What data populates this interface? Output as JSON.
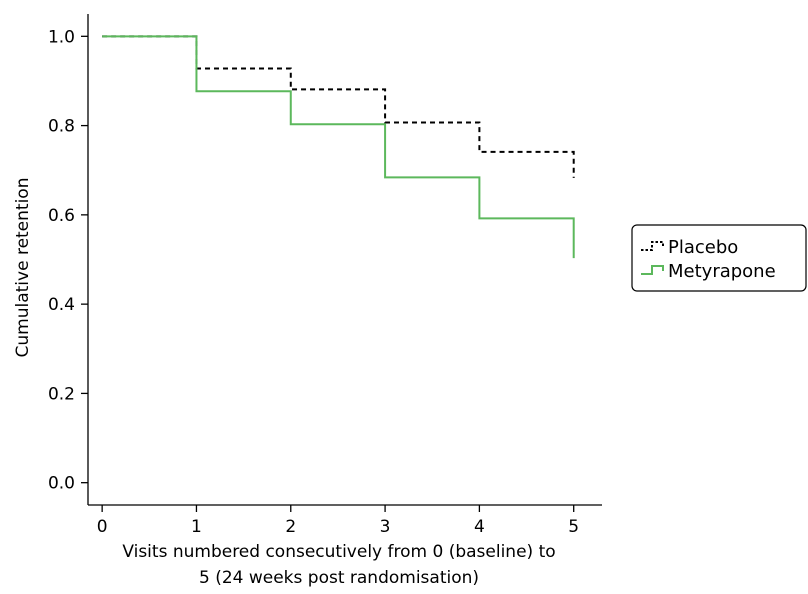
{
  "chart_data": {
    "type": "line",
    "subtype": "step",
    "title": "",
    "xlabel_lines": [
      "Visits numbered consecutively from 0 (baseline) to",
      "5 (24 weeks post randomisation)"
    ],
    "ylabel": "Cumulative retention",
    "xlim": [
      -0.15,
      5.3
    ],
    "ylim": [
      -0.05,
      1.05
    ],
    "xticks": [
      0,
      1,
      2,
      3,
      4,
      5
    ],
    "xtick_labels": [
      "0",
      "1",
      "2",
      "3",
      "4",
      "5"
    ],
    "yticks": [
      0.0,
      0.2,
      0.4,
      0.6,
      0.8,
      1.0
    ],
    "ytick_labels": [
      "0.0",
      "0.2",
      "0.4",
      "0.6",
      "0.8",
      "1.0"
    ],
    "grid": false,
    "legend_position": "right",
    "series": [
      {
        "name": "Placebo",
        "color": "#000000",
        "style": "dashed",
        "x": [
          0,
          1,
          2,
          3,
          4,
          5
        ],
        "y": [
          1.0,
          0.928,
          0.881,
          0.807,
          0.741,
          0.683
        ]
      },
      {
        "name": "Metyrapone",
        "color": "#5cb85c",
        "style": "solid",
        "x": [
          0,
          1,
          2,
          3,
          4,
          5
        ],
        "y": [
          1.0,
          0.877,
          0.803,
          0.684,
          0.592,
          0.503
        ]
      }
    ]
  }
}
